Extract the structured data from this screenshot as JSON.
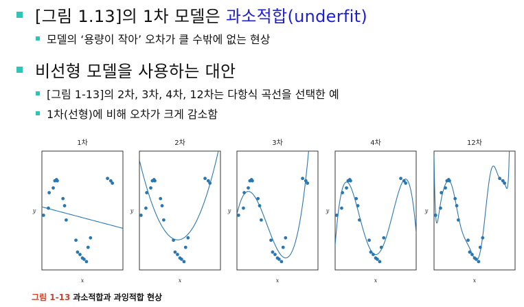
{
  "bullets": {
    "b1": {
      "prefix": "[그림 1.13]의 1차 모델은 ",
      "accent": "과소적합(underfit)",
      "accent_color": "#2020d0"
    },
    "b1_sub": "모델의 ‘용량이 작아’ 오차가 클 수밖에 없는 현상",
    "b2": "비선형 모델을 사용하는 대안",
    "b2_sub1": "[그림 1-13]의 2차, 3차, 4차, 12차는 다항식 곡선을 선택한 예",
    "b2_sub2": "1차(선형)에 비해 오차가 크게 감소함"
  },
  "figure": {
    "panel_titles": [
      "1차",
      "2차",
      "3차",
      "4차",
      "12차"
    ],
    "xlabel": "x",
    "ylabel": "y",
    "caption_number": "그림 1-13",
    "caption_text": "과소적합과 과잉적합 현상"
  },
  "colors": {
    "bullet_square": "#2ec4b6",
    "plot_blue": "#2a77b0",
    "caption_number": "#c8432c"
  },
  "chart_data": {
    "type": "scatter",
    "x_range": [
      0,
      10
    ],
    "y_range": [
      0,
      10
    ],
    "points": [
      [
        0.2,
        4.6
      ],
      [
        0.8,
        5.2
      ],
      [
        0.9,
        6.5
      ],
      [
        1.4,
        6.9
      ],
      [
        1.6,
        7.5
      ],
      [
        1.8,
        7.6
      ],
      [
        1.9,
        7.5
      ],
      [
        2.6,
        6.0
      ],
      [
        2.8,
        5.4
      ],
      [
        3.0,
        4.2
      ],
      [
        4.2,
        2.5
      ],
      [
        4.4,
        1.5
      ],
      [
        4.7,
        1.3
      ],
      [
        5.0,
        1.0
      ],
      [
        5.2,
        0.9
      ],
      [
        5.5,
        0.7
      ],
      [
        5.7,
        1.9
      ],
      [
        6.0,
        2.7
      ],
      [
        8.1,
        7.7
      ],
      [
        8.5,
        7.5
      ],
      [
        8.7,
        7.3
      ]
    ],
    "fits": [
      {
        "name": "1차",
        "degree": 1
      },
      {
        "name": "2차",
        "degree": 2
      },
      {
        "name": "3차",
        "degree": 3
      },
      {
        "name": "4차",
        "degree": 4
      },
      {
        "name": "12차",
        "degree": 12
      }
    ]
  }
}
